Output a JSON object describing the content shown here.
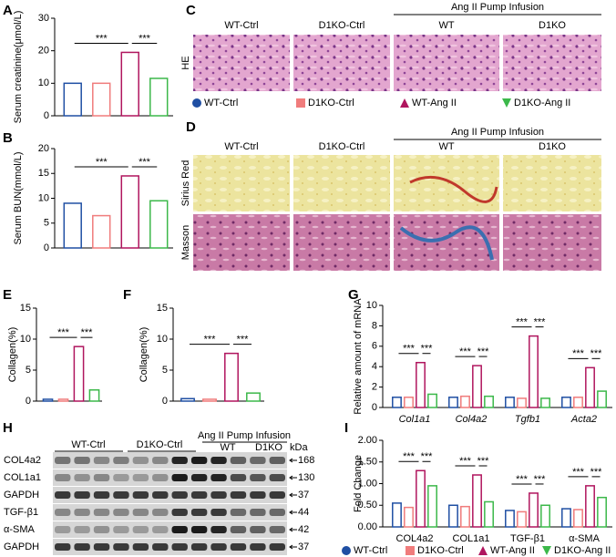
{
  "panel_labels": [
    "A",
    "B",
    "C",
    "D",
    "E",
    "F",
    "G",
    "H",
    "I"
  ],
  "he": {
    "infusion": "Ang II Pump Infusion",
    "headers": [
      "WT-Ctrl",
      "D1KO-Ctrl",
      "WT",
      "D1KO"
    ],
    "rows": [
      "HE"
    ]
  },
  "stain": {
    "infusion": "Ang II Pump Infusion",
    "headers": [
      "WT-Ctrl",
      "D1KO-Ctrl",
      "WT",
      "D1KO"
    ],
    "rows": [
      "Sirius Red",
      "Masson"
    ]
  },
  "blot": {
    "infusion": "Ang II Pump Infusion",
    "headers": [
      "WT-Ctrl",
      "D1KO-Ctrl",
      "WT",
      "D1KO"
    ],
    "unit": "kDa",
    "rows": [
      {
        "label": "COL4a2",
        "kda": 168
      },
      {
        "label": "COL1a1",
        "kda": 130
      },
      {
        "label": "GAPDH",
        "kda": 37
      },
      {
        "label": "TGF-β1",
        "kda": 44
      },
      {
        "label": "α-SMA",
        "kda": 42
      },
      {
        "label": "GAPDH",
        "kda": 37
      }
    ]
  },
  "chart_data": [
    {
      "type": "bar",
      "y_label": "Serum creatinine(μmol/L)",
      "ylim": [
        0,
        30
      ],
      "yticks": [
        0,
        10,
        20,
        30
      ],
      "series": [
        {
          "name": "WT-Ctrl",
          "color": "#1f4fa3",
          "marker": "circle",
          "values": [
            10
          ]
        },
        {
          "name": "D1KO-Ctrl",
          "color": "#f07c7c",
          "marker": "square",
          "values": [
            10
          ]
        },
        {
          "name": "WT-Ang II",
          "color": "#b0155e",
          "marker": "triangle-up",
          "values": [
            19.5
          ]
        },
        {
          "name": "D1KO-Ang II",
          "color": "#3cb84a",
          "marker": "triangle-down",
          "values": [
            11.5
          ]
        }
      ],
      "significance": [
        {
          "label": "***",
          "pair": [
            "WT-Ctrl",
            "WT-Ang II"
          ]
        },
        {
          "label": "***",
          "pair": [
            "WT-Ang II",
            "D1KO-Ang II"
          ]
        }
      ]
    },
    {
      "type": "bar",
      "y_label": "Serum BUN(mmol/L)",
      "ylim": [
        0,
        20
      ],
      "yticks": [
        0,
        5,
        10,
        15,
        20
      ],
      "series": [
        {
          "name": "WT-Ctrl",
          "color": "#1f4fa3",
          "values": [
            9
          ]
        },
        {
          "name": "D1KO-Ctrl",
          "color": "#f07c7c",
          "values": [
            6.5
          ]
        },
        {
          "name": "WT-Ang II",
          "color": "#b0155e",
          "values": [
            14.5
          ]
        },
        {
          "name": "D1KO-Ang II",
          "color": "#3cb84a",
          "values": [
            9.5
          ]
        }
      ],
      "significance": [
        {
          "label": "***",
          "pair": [
            "WT-Ctrl",
            "WT-Ang II"
          ]
        },
        {
          "label": "***",
          "pair": [
            "WT-Ang II",
            "D1KO-Ang II"
          ]
        }
      ]
    },
    {
      "type": "bar",
      "y_label": "Collagen(%)",
      "ylim": [
        0,
        15
      ],
      "yticks": [
        0,
        5,
        10,
        15
      ],
      "series": [
        {
          "name": "WT-Ctrl",
          "color": "#1f4fa3",
          "values": [
            0.3
          ]
        },
        {
          "name": "D1KO-Ctrl",
          "color": "#f07c7c",
          "values": [
            0.3
          ]
        },
        {
          "name": "WT-Ang II",
          "color": "#b0155e",
          "values": [
            8.8
          ]
        },
        {
          "name": "D1KO-Ang II",
          "color": "#3cb84a",
          "values": [
            1.8
          ]
        }
      ],
      "significance": [
        {
          "label": "***",
          "pair": [
            "WT-Ctrl",
            "WT-Ang II"
          ]
        },
        {
          "label": "***",
          "pair": [
            "WT-Ang II",
            "D1KO-Ang II"
          ]
        }
      ]
    },
    {
      "type": "bar",
      "y_label": "Collagen(%)",
      "ylim": [
        0,
        15
      ],
      "yticks": [
        0,
        5,
        10,
        15
      ],
      "series": [
        {
          "name": "WT-Ctrl",
          "color": "#1f4fa3",
          "values": [
            0.4
          ]
        },
        {
          "name": "D1KO-Ctrl",
          "color": "#f07c7c",
          "values": [
            0.3
          ]
        },
        {
          "name": "WT-Ang II",
          "color": "#b0155e",
          "values": [
            7.7
          ]
        },
        {
          "name": "D1KO-Ang II",
          "color": "#3cb84a",
          "values": [
            1.3
          ]
        }
      ],
      "significance": [
        {
          "label": "***",
          "pair": [
            "WT-Ctrl",
            "WT-Ang II"
          ]
        },
        {
          "label": "***",
          "pair": [
            "WT-Ang II",
            "D1KO-Ang II"
          ]
        }
      ]
    },
    {
      "type": "bar",
      "y_label": "Relative amount of mRNA",
      "ylim": [
        0,
        10
      ],
      "yticks": [
        0,
        2,
        4,
        6,
        8,
        10
      ],
      "categories": [
        "Col1a1",
        "Col4a2",
        "Tgfb1",
        "Acta2"
      ],
      "series": [
        {
          "name": "WT-Ctrl",
          "color": "#1f4fa3",
          "values": [
            1.0,
            1.0,
            1.0,
            1.0
          ]
        },
        {
          "name": "D1KO-Ctrl",
          "color": "#f07c7c",
          "values": [
            1.0,
            1.1,
            0.9,
            1.0
          ]
        },
        {
          "name": "WT-Ang II",
          "color": "#b0155e",
          "values": [
            4.4,
            4.1,
            7.0,
            3.9
          ]
        },
        {
          "name": "D1KO-Ang II",
          "color": "#3cb84a",
          "values": [
            1.3,
            1.1,
            0.9,
            1.6
          ]
        }
      ],
      "significance": [
        {
          "label": "***",
          "pair": [
            "WT-Ctrl",
            "WT-Ang II"
          ]
        },
        {
          "label": "***",
          "pair": [
            "WT-Ang II",
            "D1KO-Ang II"
          ]
        }
      ]
    },
    {
      "type": "bar",
      "y_label": "Fold Change",
      "ylim": [
        0,
        2
      ],
      "yticks": [
        {
          "value": 0,
          "label": "0.00"
        },
        {
          "value": 0.5,
          "label": "0.50"
        },
        {
          "value": 1,
          "label": "1.00"
        },
        {
          "value": 1.5,
          "label": "1.50"
        },
        {
          "value": 2,
          "label": "2.00"
        }
      ],
      "categories": [
        "COL4a2",
        "COL1a1",
        "TGF-β1",
        "α-SMA"
      ],
      "series": [
        {
          "name": "WT-Ctrl",
          "color": "#1f4fa3",
          "marker": "circle",
          "values": [
            0.55,
            0.5,
            0.38,
            0.42
          ]
        },
        {
          "name": "D1KO-Ctrl",
          "color": "#f07c7c",
          "marker": "square",
          "values": [
            0.45,
            0.47,
            0.35,
            0.4
          ]
        },
        {
          "name": "WT-Ang II",
          "color": "#b0155e",
          "marker": "triangle-up",
          "values": [
            1.3,
            1.2,
            0.78,
            0.95
          ]
        },
        {
          "name": "D1KO-Ang II",
          "color": "#3cb84a",
          "marker": "triangle-down",
          "values": [
            0.95,
            0.58,
            0.5,
            0.68
          ]
        }
      ],
      "significance": [
        {
          "label": "***",
          "pair": [
            "WT-Ctrl",
            "WT-Ang II"
          ]
        },
        {
          "label": "***",
          "pair": [
            "WT-Ang II",
            "D1KO-Ang II"
          ]
        }
      ]
    }
  ]
}
